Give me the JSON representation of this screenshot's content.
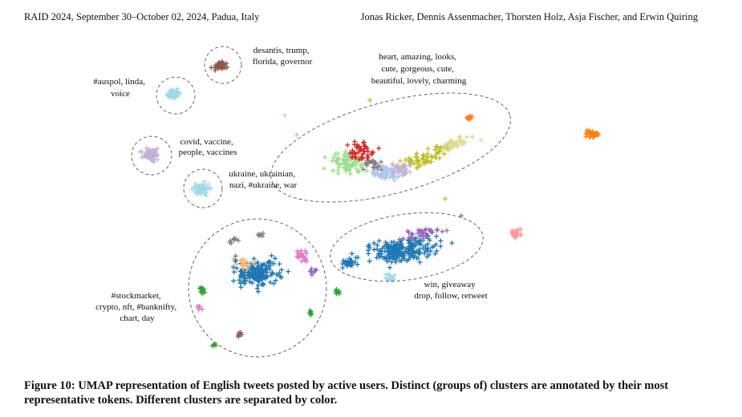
{
  "header": {
    "left": "RAID 2024, September 30–October 02, 2024, Padua, Italy",
    "right": "Jonas Ricker, Dennis Assenmacher, Thorsten Holz, Asja Fischer, and Erwin Quiring"
  },
  "caption": "Figure 10: UMAP representation of English tweets posted by active users. Distinct (groups of) clusters are annotated by their most representative tokens. Different clusters are separated by color.",
  "annotations": [
    {
      "id": "desantis",
      "lines": [
        "desantis, trump,",
        "florida, governor"
      ]
    },
    {
      "id": "auspol",
      "lines": [
        "#auspol, linda,",
        "voice"
      ]
    },
    {
      "id": "heart",
      "lines": [
        "heart, amazing, looks,",
        "cute, gorgeous, cute,",
        "beautiful, lovely, charming"
      ]
    },
    {
      "id": "covid",
      "lines": [
        "covid, vaccine,",
        "people, vaccines"
      ]
    },
    {
      "id": "ukraine",
      "lines": [
        "ukraine, ukrainian,",
        "nazi, #ukraine, war"
      ]
    },
    {
      "id": "stock",
      "lines": [
        "#stockmarket,",
        "crypto, nft, #banknifty,",
        "chart, day"
      ]
    },
    {
      "id": "win",
      "lines": [
        "win, giveaway",
        "drop, follow, retweet"
      ]
    }
  ],
  "colors": {
    "brown": "#8c564b",
    "lightblue": "#9edae5",
    "lilac": "#c5b0d5",
    "lightgreen": "#98df8a",
    "red": "#d62728",
    "olive": "#bcbd22",
    "paleolive": "#dbdb8d",
    "orange": "#ff7f0e",
    "blue": "#1f77b4",
    "purple": "#9467bd",
    "pink": "#e377c2",
    "gray": "#7f7f7f",
    "green": "#2ca02c",
    "peach": "#ffbb78",
    "salmon": "#ff9896",
    "steel": "#aec7e8"
  }
}
